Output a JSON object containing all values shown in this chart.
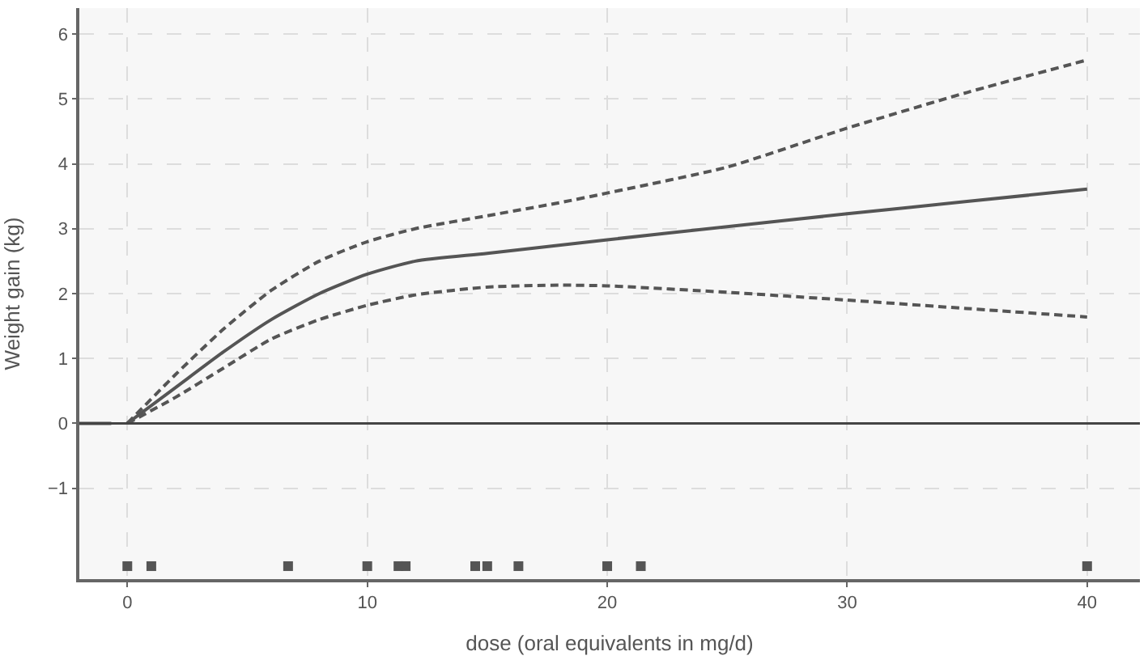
{
  "chart_data": {
    "type": "line",
    "xlabel": "dose (oral equivalents in mg/d)",
    "ylabel": "Weight gain (kg)",
    "xlim": [
      -2,
      42.2
    ],
    "ylim": [
      -2.4,
      6.4
    ],
    "xticks": [
      0,
      10,
      20,
      30,
      40
    ],
    "yticks": [
      {
        "value": -1,
        "label": "−1"
      },
      0,
      1,
      2,
      3,
      4,
      5,
      6
    ],
    "grid": true,
    "ref_lines": [
      {
        "axis": "y",
        "value": 0,
        "label": null,
        "color": "#444444",
        "line_style": "solid"
      }
    ],
    "series": [
      {
        "color": "#555555",
        "line_style": "solid",
        "x": [
          0,
          2,
          4,
          6,
          8,
          10,
          12,
          15,
          20,
          25,
          30,
          35,
          40
        ],
        "values": [
          0,
          0.55,
          1.1,
          1.6,
          2.0,
          2.3,
          2.5,
          2.62,
          2.83,
          3.03,
          3.23,
          3.42,
          3.61
        ]
      },
      {
        "color": "#555555",
        "line_style": "dashed",
        "x": [
          0,
          2,
          4,
          6,
          8,
          10,
          12,
          15,
          18,
          20,
          25,
          30,
          35,
          40
        ],
        "values": [
          0,
          0.75,
          1.45,
          2.05,
          2.5,
          2.8,
          3.0,
          3.2,
          3.4,
          3.55,
          3.95,
          4.55,
          5.1,
          5.6
        ]
      },
      {
        "color": "#555555",
        "line_style": "dashed",
        "x": [
          0,
          2,
          4,
          6,
          8,
          10,
          12,
          15,
          18,
          20,
          25,
          30,
          35,
          40
        ],
        "values": [
          0,
          0.4,
          0.85,
          1.3,
          1.6,
          1.82,
          1.98,
          2.1,
          2.13,
          2.12,
          2.02,
          1.9,
          1.77,
          1.64
        ]
      },
      {
        "color": "#555555",
        "line_style": "solid",
        "x": [
          -2,
          -0.67
        ],
        "values": [
          0,
          0
        ]
      },
      {
        "type": "scatter",
        "marker": "square",
        "color": "#555555",
        "x": [
          0,
          1,
          6.7,
          10,
          11.3,
          11.6,
          14.5,
          15,
          16.3,
          20,
          21.4,
          40
        ],
        "values": [
          -2.2,
          -2.2,
          -2.2,
          -2.2,
          -2.2,
          -2.2,
          -2.2,
          -2.2,
          -2.2,
          -2.2,
          -2.2,
          -2.2
        ]
      }
    ]
  }
}
